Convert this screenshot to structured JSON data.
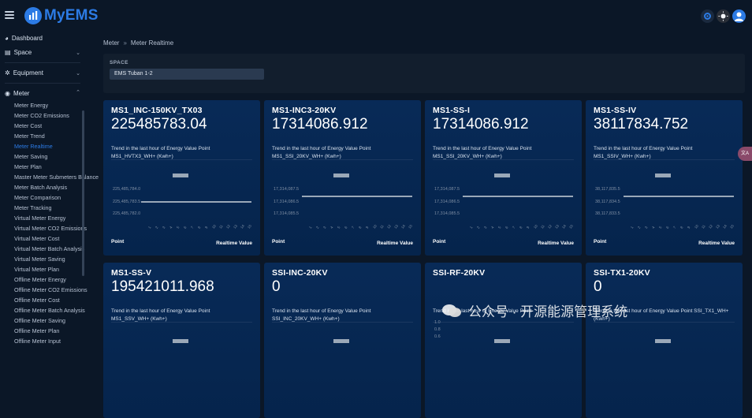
{
  "app": {
    "brand": "MyEMS"
  },
  "sidebar": {
    "items": [
      {
        "label": "Dashboard",
        "icon": "chart-pie-icon"
      },
      {
        "label": "Space",
        "icon": "building-icon"
      },
      {
        "label": "Equipment",
        "icon": "gear-icon"
      },
      {
        "label": "Meter",
        "icon": "gauge-icon"
      }
    ],
    "meter_sub": [
      "Meter Energy",
      "Meter CO2 Emissions",
      "Meter Cost",
      "Meter Trend",
      "Meter Realtime",
      "Meter Saving",
      "Meter Plan",
      "Master Meter Submeters Balance",
      "Meter Batch Analysis",
      "Meter Comparison",
      "Meter Tracking",
      "Virtual Meter Energy",
      "Virtual Meter CO2 Emissions",
      "Virtual Meter Cost",
      "Virtual Meter Batch Analysis",
      "Virtual Meter Saving",
      "Virtual Meter Plan",
      "Offline Meter Energy",
      "Offline Meter CO2 Emissions",
      "Offline Meter Cost",
      "Offline Meter Batch Analysis",
      "Offline Meter Saving",
      "Offline Meter Plan",
      "Offline Meter Input"
    ],
    "active_sub": "Meter Realtime"
  },
  "breadcrumb": {
    "parent": "Meter",
    "separator": "»",
    "current": "Meter Realtime"
  },
  "space": {
    "label": "SPACE",
    "value": "EMS Tuban 1-2"
  },
  "cards": [
    {
      "title": "MS1_INC-150KV_TX03",
      "value": "225485783.04",
      "trend_line1": "Trend in the last hour of Energy Value Point",
      "trend_line2": "MS1_HVTX3_WH+ (Kwh+)",
      "yticks": [
        "225,485,784.0",
        "225,485,783.5",
        "225,485,782.0"
      ],
      "point": "Point",
      "realtime": "Realtime Value"
    },
    {
      "title": "MS1-INC3-20KV",
      "value": "17314086.912",
      "trend_line1": "Trend in the last hour of Energy Value Point",
      "trend_line2": "MS1_SSI_20KV_WH+ (Kwh+)",
      "yticks": [
        "17,314,087.5",
        "17,314,086.5",
        "17,314,085.5"
      ],
      "point": "Point",
      "realtime": "Realtime Value"
    },
    {
      "title": "MS1-SS-I",
      "value": "17314086.912",
      "trend_line1": "Trend in the last hour of Energy Value Point",
      "trend_line2": "MS1_SSI_20KV_WH+ (Kwh+)",
      "yticks": [
        "17,314,087.5",
        "17,314,086.5",
        "17,314,085.5"
      ],
      "point": "Point",
      "realtime": "Realtime Value"
    },
    {
      "title": "MS1-SS-IV",
      "value": "38117834.752",
      "trend_line1": "Trend in the last hour of Energy Value Point",
      "trend_line2": "MS1_SSIV_WH+ (Kwh+)",
      "yticks": [
        "38,117,835.5",
        "38,117,834.5",
        "38,117,833.5"
      ],
      "point": "Point",
      "realtime": "Realtime Value"
    },
    {
      "title": "MS1-SS-V",
      "value": "195421011.968",
      "trend_line1": "Trend in the last hour of Energy Value Point",
      "trend_line2": "MS1_SSV_WH+ (Kwh+)"
    },
    {
      "title": "SSI-INC-20KV",
      "value": "0",
      "trend_line1": "Trend in the last hour of Energy Value Point",
      "trend_line2": "SSI_INC_20KV_WH+ (Kwh+)"
    },
    {
      "title": "SSI-RF-20KV",
      "value": "",
      "trend_line1": "Trend in the last hour of Energy Value Point",
      "trend_line2": "",
      "yticks": [
        "1.0",
        "0.8",
        "0.6"
      ]
    },
    {
      "title": "SSI-TX1-20KV",
      "value": "0",
      "trend_line1": "Trend in the last hour of Energy Value Point SSI_TX1_WH+",
      "trend_line2": "(Kwh+)"
    }
  ],
  "xticks": [
    "1",
    "2",
    "3",
    "4",
    "5",
    "6",
    "7",
    "8",
    "9",
    "10",
    "11",
    "12",
    "13",
    "14",
    "15"
  ],
  "side_bubble": "文A",
  "watermark": "公众号 · 开源能源管理系统"
}
